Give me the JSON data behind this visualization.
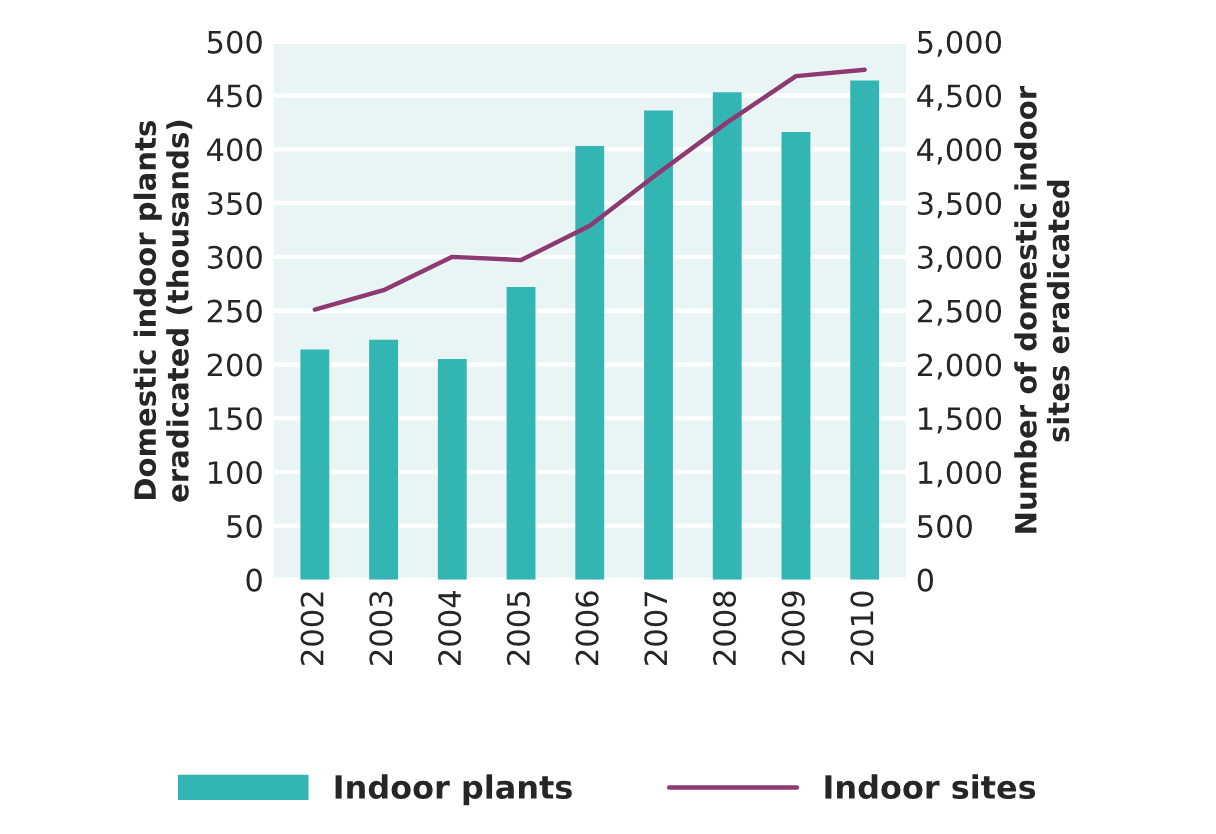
{
  "chart_data": {
    "type": "bar",
    "categories": [
      "2002",
      "2003",
      "2004",
      "2005",
      "2006",
      "2007",
      "2008",
      "2009",
      "2010"
    ],
    "series": [
      {
        "name": "Indoor plants",
        "color": "#33b5b3",
        "values": [
          214,
          223,
          205,
          272,
          403,
          436,
          453,
          416,
          464
        ]
      },
      {
        "name": "Indoor sites",
        "type": "line",
        "axis": "y2",
        "color": "#8e3a72",
        "values": [
          2510,
          2690,
          3000,
          2970,
          3290,
          3780,
          4250,
          4680,
          4740
        ]
      }
    ],
    "ylabel": "Domestic indoor plants eradicated (thousands)",
    "y2label": "Number of domestic indoor sites eradicated",
    "ylim": [
      0,
      500
    ],
    "yticks": [
      0,
      50,
      100,
      150,
      200,
      250,
      300,
      350,
      400,
      450,
      500
    ],
    "y2lim": [
      0,
      5000
    ],
    "y2ticks": [
      {
        "value": 0,
        "label": "0"
      },
      {
        "value": 500,
        "label": "500"
      },
      {
        "value": 1000,
        "label": "1,000"
      },
      {
        "value": 1500,
        "label": "1,500"
      },
      {
        "value": 2000,
        "label": "2,000"
      },
      {
        "value": 2500,
        "label": "2,500"
      },
      {
        "value": 3000,
        "label": "3,000"
      },
      {
        "value": 3500,
        "label": "3,500"
      },
      {
        "value": 4000,
        "label": "4,000"
      },
      {
        "value": 4500,
        "label": "4,500"
      },
      {
        "value": 5000,
        "label": "5,000"
      }
    ],
    "grid": "y",
    "legend": "bottom",
    "marker": "none"
  }
}
